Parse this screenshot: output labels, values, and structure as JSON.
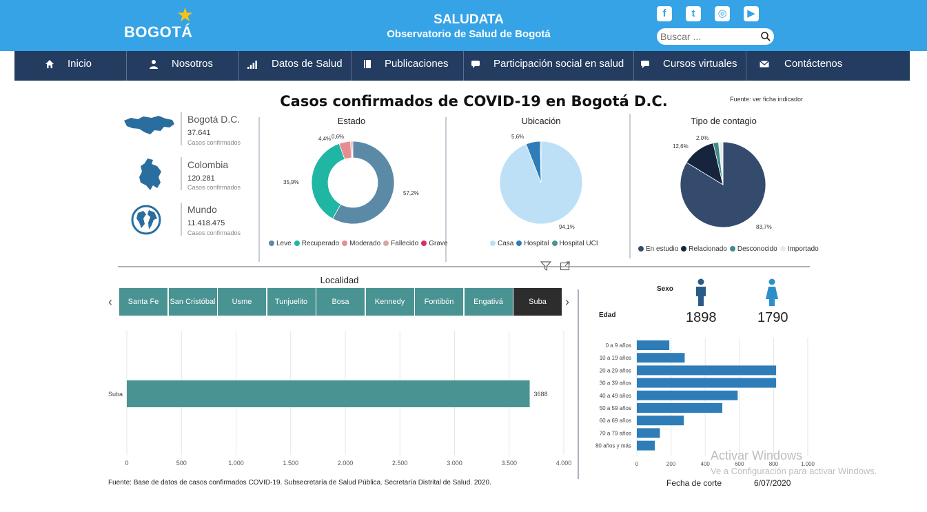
{
  "header": {
    "logo_text": "BOGOTÁ",
    "title": "SALUDATA",
    "subtitle": "Observatorio de Salud de Bogotá",
    "social": [
      {
        "icon": "facebook-icon",
        "glyph": "f"
      },
      {
        "icon": "twitter-icon",
        "glyph": "t"
      },
      {
        "icon": "instagram-icon",
        "glyph": "◎"
      },
      {
        "icon": "youtube-icon",
        "glyph": "▶"
      }
    ],
    "search": {
      "placeholder": "Buscar ...",
      "value": ""
    }
  },
  "nav": [
    {
      "label": "Inicio",
      "icon": "home-icon"
    },
    {
      "label": "Nosotros",
      "icon": "user-icon"
    },
    {
      "label": "Datos de Salud",
      "icon": "bar-chart-icon"
    },
    {
      "label": "Publicaciones",
      "icon": "book-icon"
    },
    {
      "label": "Participación social en salud",
      "icon": "comment-icon"
    },
    {
      "label": "Cursos virtuales",
      "icon": "comment-icon"
    },
    {
      "label": "Contáctenos",
      "icon": "envelope-icon"
    }
  ],
  "dashboard": {
    "title": "Casos confirmados de COVID-19 en Bogotá D.C.",
    "source_top": "Fuente: ver ficha indicador",
    "regions": [
      {
        "name": "Bogotá D.C.",
        "value": "37.641",
        "label": "Casos confirmados",
        "icon": "bogota-map-icon"
      },
      {
        "name": "Colombia",
        "value": "120.281",
        "label": "Casos confirmados",
        "icon": "colombia-map-icon"
      },
      {
        "name": "Mundo",
        "value": "11.418.475",
        "label": "Casos confirmados",
        "icon": "globe-icon"
      }
    ],
    "footer_source": "Fuente: Base de datos de casos confirmados COVID-19. Subsecretaría de Salud Pública. Secretaría Distrital de Salud. 2020.",
    "fecha_label": "Fecha de corte",
    "fecha_value": "6/07/2020",
    "localidad_title": "Localidad",
    "localidades": [
      "Santa Fe",
      "San Cristóbal",
      "Usme",
      "Tunjuelito",
      "Bosa",
      "Kennedy",
      "Fontibón",
      "Engativá",
      "Suba"
    ],
    "localidad_active": "Suba",
    "sexo_label": "Sexo",
    "edad_label": "Edad",
    "sexo": [
      {
        "icon": "male-icon",
        "count": "1898",
        "color": "#2a5a8a"
      },
      {
        "icon": "female-icon",
        "count": "1790",
        "color": "#2b8fc9"
      }
    ]
  },
  "watermark": {
    "line1": "Activar Windows",
    "line2": "Ve a Configuración para activar Windows."
  },
  "colors": {
    "header_bg": "#35a3e6",
    "nav_bg": "#243c60",
    "teal": "#4a9393",
    "age_bar": "#2f7db8"
  },
  "chart_data": [
    {
      "type": "pie",
      "variant": "donut",
      "title": "Estado",
      "categories": [
        "Leve",
        "Recuperado",
        "Moderado",
        "Fallecido",
        "Grave"
      ],
      "values": [
        57.2,
        35.9,
        4.4,
        0.6,
        0.3
      ],
      "value_labels": [
        "57,2%",
        "35,9%",
        "4,4%",
        "0,6%",
        ""
      ],
      "colors": [
        "#5b8aa6",
        "#1fb7a4",
        "#e88d8f",
        "#d9a8a5",
        "#d1355f"
      ],
      "legend": "bottom"
    },
    {
      "type": "pie",
      "title": "Ubicación",
      "categories": [
        "Casa",
        "Hospital",
        "Hospital UCI"
      ],
      "values": [
        94.1,
        5.6,
        0.3
      ],
      "value_labels": [
        "94,1%",
        "5,6%",
        ""
      ],
      "colors": [
        "#bde0f7",
        "#2f7db8",
        "#4a9393"
      ],
      "legend": "bottom"
    },
    {
      "type": "pie",
      "title": "Tipo de contagio",
      "categories": [
        "En estudio",
        "Relacionado",
        "Desconocido",
        "Importado"
      ],
      "values": [
        83.7,
        12.6,
        2.0,
        1.7
      ],
      "value_labels": [
        "83,7%",
        "12,6%",
        "2,0%",
        ""
      ],
      "colors": [
        "#344b6e",
        "#16243d",
        "#3f8c8a",
        "#e6ece9"
      ],
      "legend": "bottom"
    },
    {
      "type": "bar",
      "orientation": "horizontal",
      "categories": [
        "Suba"
      ],
      "values": [
        3688
      ],
      "value_labels": [
        "3688"
      ],
      "xlim": [
        0,
        4000
      ],
      "xticks": [
        0,
        500,
        1000,
        1500,
        2000,
        2500,
        3000,
        3500,
        4000
      ],
      "xtick_labels": [
        "0",
        "500",
        "1.000",
        "1.500",
        "2.000",
        "2.500",
        "3.000",
        "3.500",
        "4.000"
      ],
      "color": "#4a9393",
      "grid": true
    },
    {
      "type": "bar",
      "orientation": "horizontal",
      "categories": [
        "0 a 9 años",
        "10 a 19 años",
        "20 a 29 años",
        "30 a 39 años",
        "40 a 49 años",
        "50 a 59 años",
        "60 a 69 años",
        "70 a 79 años",
        "80 años y más"
      ],
      "values": [
        190,
        280,
        815,
        815,
        590,
        500,
        275,
        135,
        105
      ],
      "xlim": [
        0,
        1000
      ],
      "xticks": [
        0,
        200,
        400,
        600,
        800,
        1000
      ],
      "xtick_labels": [
        "0",
        "200",
        "400",
        "600",
        "800",
        "1.000"
      ],
      "color": "#2f7db8",
      "grid": true
    }
  ]
}
